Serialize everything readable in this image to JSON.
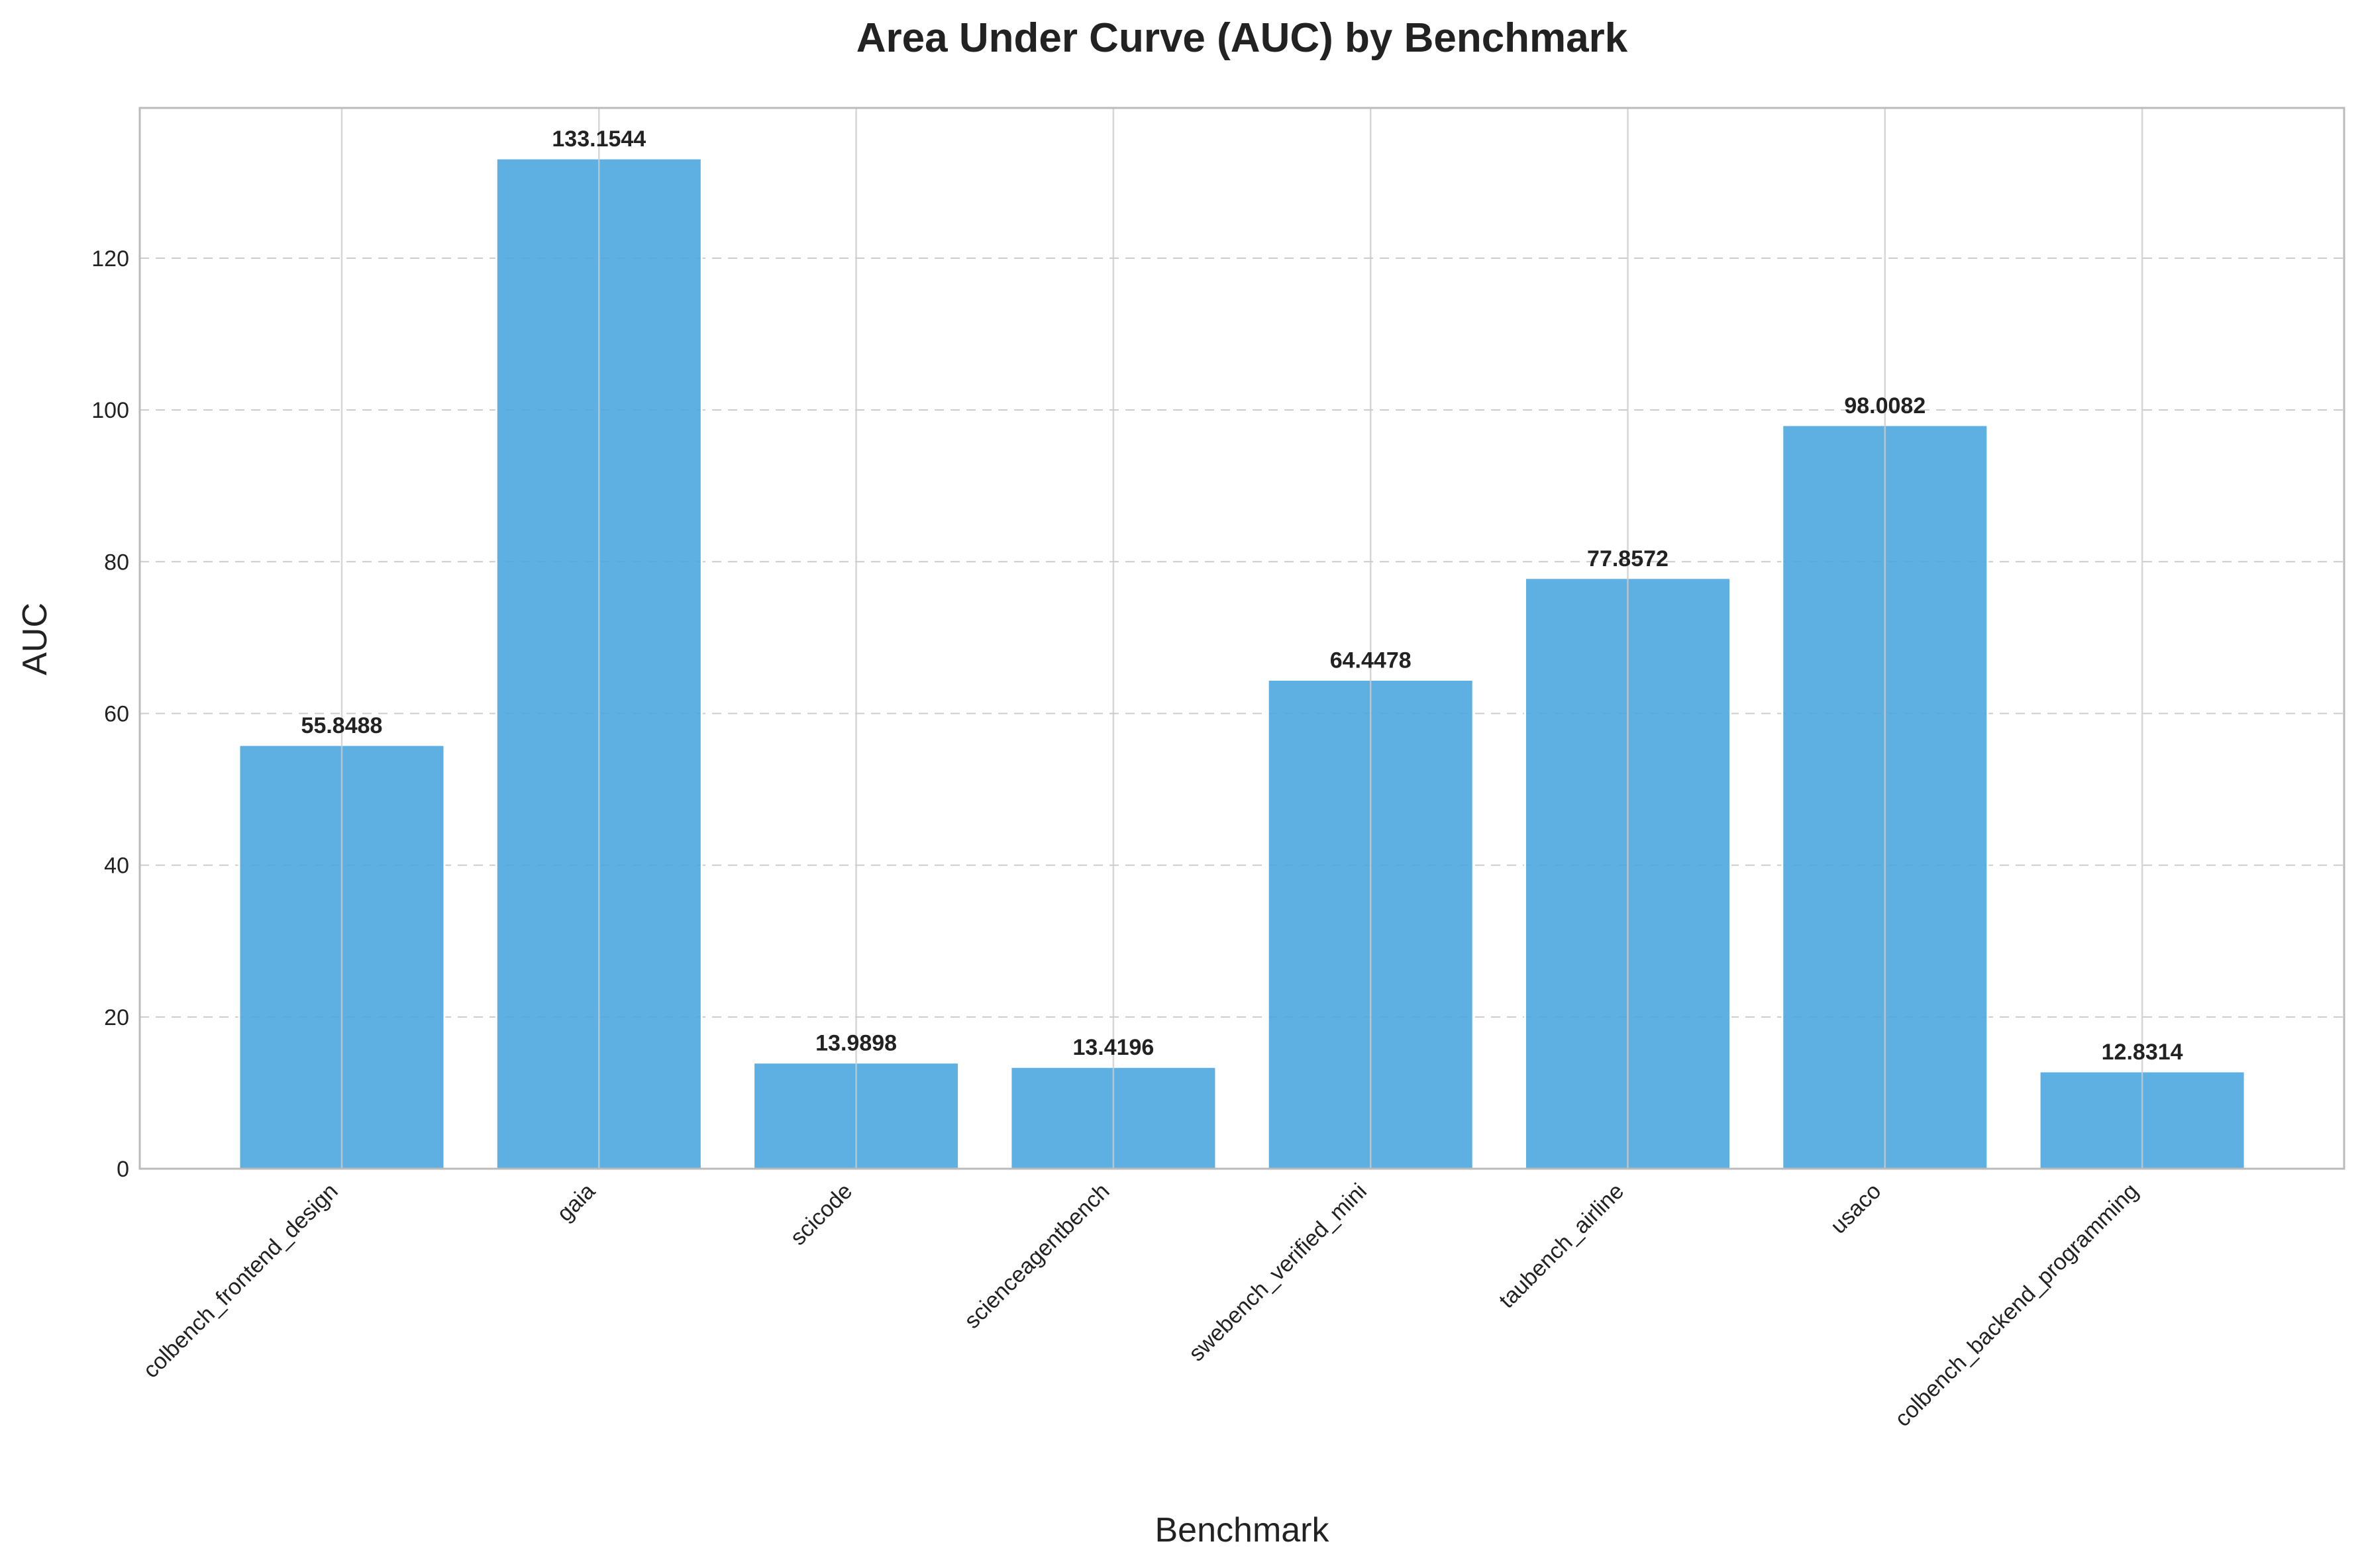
{
  "chart_data": {
    "type": "bar",
    "title": "Area Under Curve (AUC) by Benchmark",
    "xlabel": "Benchmark",
    "ylabel": "AUC",
    "categories": [
      "colbench_frontend_design",
      "gaia",
      "scicode",
      "scienceagentbench",
      "swebench_verified_mini",
      "taubench_airline",
      "usaco",
      "colbench_backend_programming"
    ],
    "values": [
      55.8488,
      133.1544,
      13.9898,
      13.4196,
      64.4478,
      77.8572,
      98.0082,
      12.8314
    ],
    "value_labels": [
      "55.8488",
      "133.1544",
      "13.9898",
      "13.4196",
      "64.4478",
      "77.8572",
      "98.0082",
      "12.8314"
    ],
    "ylim": [
      0,
      139.8
    ],
    "yticks": [
      0,
      20,
      40,
      60,
      80,
      100,
      120
    ],
    "bar_color": "#4da6df",
    "grid": true,
    "legend": "none"
  }
}
